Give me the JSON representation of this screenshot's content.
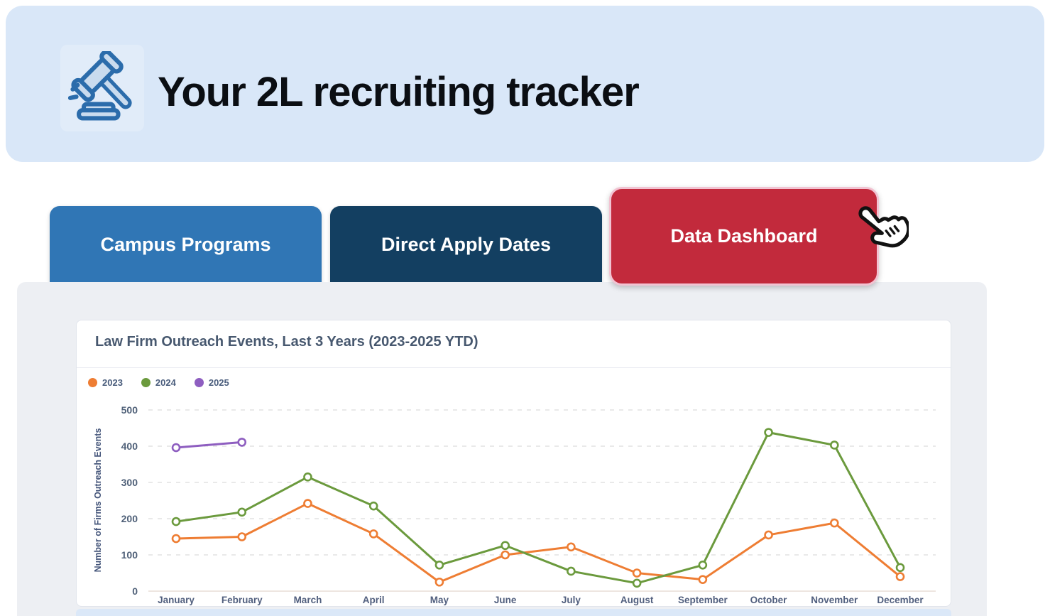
{
  "header": {
    "title": "Your 2L recruiting tracker",
    "icon": "gavel-icon",
    "background_color": "#d9e7f8"
  },
  "tabs": [
    {
      "label": "Campus Programs",
      "color": "#3076b5",
      "active": false
    },
    {
      "label": "Direct Apply Dates",
      "color": "#133f61",
      "active": false
    },
    {
      "label": "Data Dashboard",
      "color": "#c22a3c",
      "active": true,
      "border_color": "#f2c3d2"
    }
  ],
  "cursor": {
    "type": "hand-pointer-cursor",
    "over": "Data Dashboard"
  },
  "chart_card": {
    "title": "Law Firm Outreach Events, Last 3 Years (2023-2025 YTD)"
  },
  "chart_data": {
    "type": "line",
    "title": "Law Firm Outreach Events, Last 3 Years (2023-2025 YTD)",
    "categories": [
      "January",
      "February",
      "March",
      "April",
      "May",
      "June",
      "July",
      "August",
      "September",
      "October",
      "November",
      "December"
    ],
    "series": [
      {
        "name": "2023",
        "color": "#ee7d33",
        "values": [
          145,
          150,
          242,
          158,
          25,
          100,
          122,
          50,
          32,
          155,
          188,
          40
        ]
      },
      {
        "name": "2024",
        "color": "#6b9a3d",
        "values": [
          192,
          218,
          315,
          235,
          72,
          126,
          55,
          22,
          72,
          438,
          403,
          65
        ]
      },
      {
        "name": "2025",
        "color": "#8e5ec0",
        "values": [
          396,
          411
        ]
      }
    ],
    "xlabel": "",
    "ylabel": "Number of Firms Outreach Events",
    "ylim": [
      0,
      500
    ],
    "yticks": [
      0,
      100,
      200,
      300,
      400,
      500
    ],
    "grid": "horizontal-dashed",
    "legend_position": "top-left",
    "marker": "open-circle"
  }
}
